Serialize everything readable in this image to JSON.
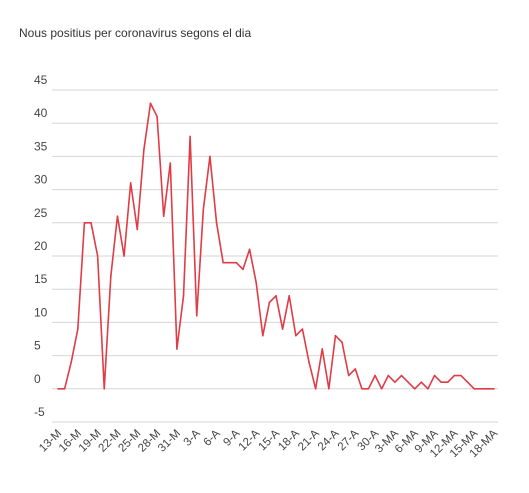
{
  "chart_data": {
    "type": "line",
    "title": "Nous positius per coronavirus segons el dia",
    "xlabel": "",
    "ylabel": "",
    "ylim": [
      -5,
      45
    ],
    "yticks": [
      -5,
      0,
      5,
      10,
      15,
      20,
      25,
      30,
      35,
      40,
      45
    ],
    "grid": true,
    "legend": "none",
    "line_color": "#e03c45",
    "x_tick_labels": [
      "13-M",
      "16-M",
      "19-M",
      "22-M",
      "25-M",
      "28-M",
      "31-M",
      "3-A",
      "6-A",
      "9-A",
      "12-A",
      "15-A",
      "18-A",
      "21-A",
      "24-A",
      "27-A",
      "30-A",
      "3-MA",
      "6-MA",
      "9-MA",
      "12-MA",
      "15-MA",
      "18-MA"
    ],
    "series": [
      {
        "values": [
          0,
          0,
          4,
          9,
          25,
          25,
          20,
          0,
          17,
          26,
          20,
          31,
          24,
          36,
          43,
          41,
          26,
          34,
          6,
          14,
          38,
          11,
          27,
          35,
          25,
          19,
          19,
          19,
          18,
          21,
          16,
          8,
          13,
          14,
          9,
          14,
          8,
          9,
          4,
          0,
          6,
          0,
          8,
          7,
          2,
          3,
          0,
          0,
          2,
          0,
          2,
          1,
          2,
          1,
          0,
          1,
          0,
          2,
          1,
          1,
          2,
          2,
          1,
          0,
          0,
          0,
          0
        ]
      }
    ]
  }
}
